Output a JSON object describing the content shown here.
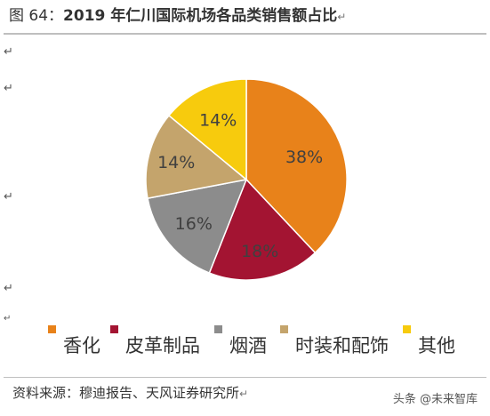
{
  "title": {
    "label": "图 64：",
    "text": "2019 年仁川国际机场各品类销售额占比"
  },
  "paragraph_mark": "↵",
  "chart_data": {
    "type": "pie",
    "title": "2019 年仁川国际机场各品类销售额占比",
    "slices": [
      {
        "name": "香化",
        "value": 38,
        "label": "38%",
        "color": "#E8821A"
      },
      {
        "name": "皮革制品",
        "value": 18,
        "label": "18%",
        "color": "#A31432"
      },
      {
        "name": "烟酒",
        "value": 16,
        "label": "16%",
        "color": "#8C8C8C"
      },
      {
        "name": "时装和配饰",
        "value": 14,
        "label": "14%",
        "color": "#C4A46C"
      },
      {
        "name": "其他",
        "value": 14,
        "label": "14%",
        "color": "#F7CB0D"
      }
    ],
    "start_angle_deg": 0,
    "direction": "clockwise",
    "legend_position": "bottom"
  },
  "source": "资料来源：穆迪报告、天风证券研究所",
  "watermark": "头条 @未来智库"
}
